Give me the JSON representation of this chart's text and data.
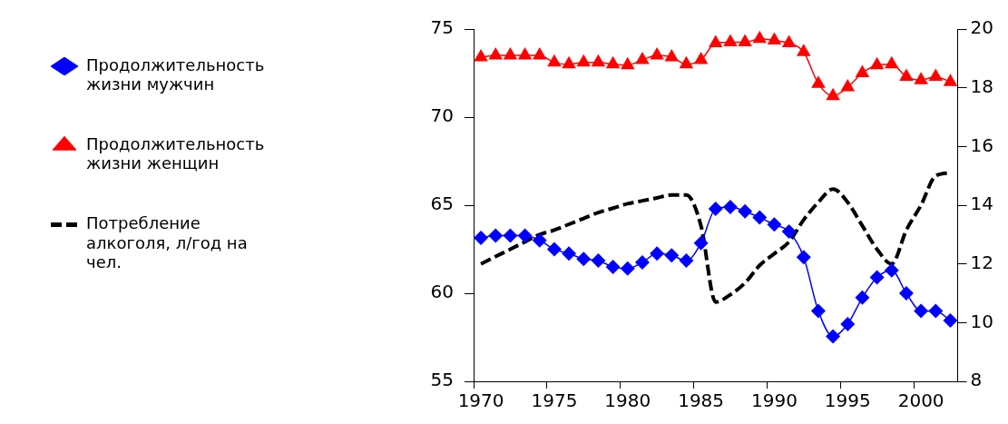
{
  "chart_data": {
    "type": "line",
    "legend": "left",
    "grid": false,
    "categories": [
      "1970",
      null,
      null,
      null,
      null,
      "1975",
      null,
      null,
      null,
      null,
      "1980",
      null,
      null,
      null,
      null,
      "1985",
      null,
      null,
      null,
      null,
      "1990",
      null,
      null,
      null,
      null,
      "1995",
      null,
      null,
      null,
      null,
      "2000",
      null,
      null
    ],
    "ylim": [
      55,
      75
    ],
    "yticks": [
      55,
      60,
      65,
      70,
      75
    ],
    "y2lim": [
      8,
      20
    ],
    "y2ticks": [
      8,
      10,
      12,
      14,
      16,
      18,
      20
    ],
    "series": [
      {
        "name": "Продолжительность жизни мужчин",
        "color": "#0000ff",
        "marker": "diamond",
        "line_style": "solid",
        "values": [
          63.15,
          63.27,
          63.27,
          63.27,
          63.0,
          62.5,
          62.25,
          61.95,
          61.85,
          61.5,
          61.4,
          61.75,
          62.25,
          62.15,
          61.85,
          62.85,
          64.8,
          64.9,
          64.65,
          64.3,
          63.9,
          63.5,
          62.05,
          59.0,
          57.55,
          58.25,
          59.75,
          60.9,
          61.3,
          60.0,
          59.0,
          59.0,
          58.45
        ]
      },
      {
        "name": "Продолжительность жизни женщин",
        "color": "#ff0000",
        "marker": "triangle",
        "line_style": "solid",
        "values": [
          73.4,
          73.5,
          73.5,
          73.5,
          73.5,
          73.1,
          73.0,
          73.1,
          73.1,
          73.0,
          72.95,
          73.25,
          73.5,
          73.4,
          73.0,
          73.25,
          74.2,
          74.25,
          74.25,
          74.45,
          74.35,
          74.2,
          73.7,
          71.9,
          71.2,
          71.7,
          72.5,
          72.95,
          73.0,
          72.3,
          72.1,
          72.3,
          72.0
        ]
      },
      {
        "name": "Потребление алкоголя, л/год на чел.",
        "color": "#000000",
        "marker": "none",
        "line_style": "dashed",
        "axis": "y2",
        "values": [
          12.0,
          12.25,
          12.5,
          12.75,
          13.0,
          13.15,
          13.35,
          13.55,
          13.75,
          13.9,
          14.05,
          14.15,
          14.25,
          14.35,
          14.35,
          13.3,
          10.7,
          10.95,
          11.35,
          11.95,
          12.35,
          12.75,
          13.5,
          14.1,
          14.55,
          14.1,
          13.3,
          12.5,
          12.0,
          13.15,
          14.0,
          15.0,
          15.1
        ]
      }
    ]
  }
}
